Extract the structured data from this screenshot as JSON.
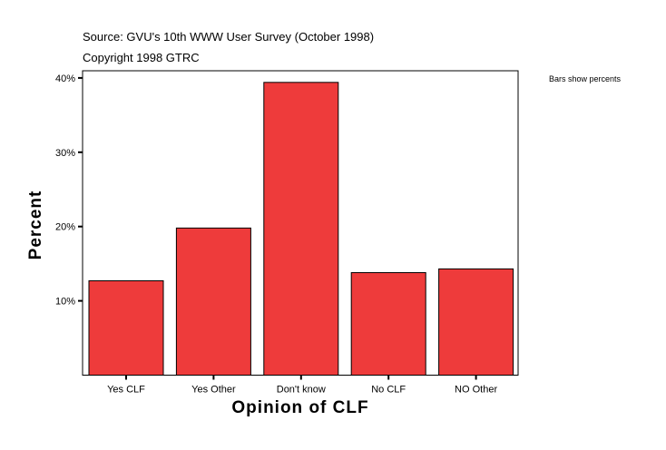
{
  "header": {
    "source": "Source: GVU's 10th WWW User Survey (October 1998)",
    "copyright": "Copyright 1998 GTRC"
  },
  "note": "Bars show percents",
  "chart_data": {
    "type": "bar",
    "title": "",
    "xlabel": "Opinion of CLF",
    "ylabel": "Percent",
    "categories": [
      "Yes CLF",
      "Yes Other",
      "Don't know",
      "No CLF",
      "NO Other"
    ],
    "values": [
      12.7,
      19.8,
      39.4,
      13.8,
      14.3
    ],
    "yticks": [
      10,
      20,
      30,
      40
    ],
    "ytick_labels": [
      "10%",
      "20%",
      "30%",
      "40%"
    ],
    "ylim": [
      0,
      40.5
    ],
    "grid": false,
    "legend": "none",
    "bar_color": "#EE3B3B"
  }
}
